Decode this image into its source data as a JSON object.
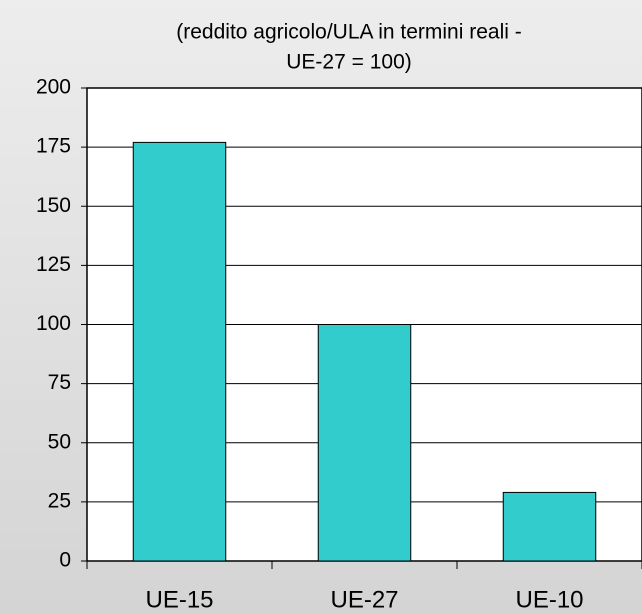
{
  "chart_data": {
    "type": "bar",
    "title": [
      "(reddito agricolo/ULA in termini reali -",
      "UE-27 = 100)"
    ],
    "categories": [
      "UE-15",
      "UE-27",
      "UE-10"
    ],
    "values": [
      177,
      100,
      29
    ],
    "color": "#33cccc",
    "ylim": [
      0,
      200
    ],
    "yticks": [
      0,
      25,
      50,
      75,
      100,
      125,
      150,
      175,
      200
    ],
    "grid": true
  }
}
